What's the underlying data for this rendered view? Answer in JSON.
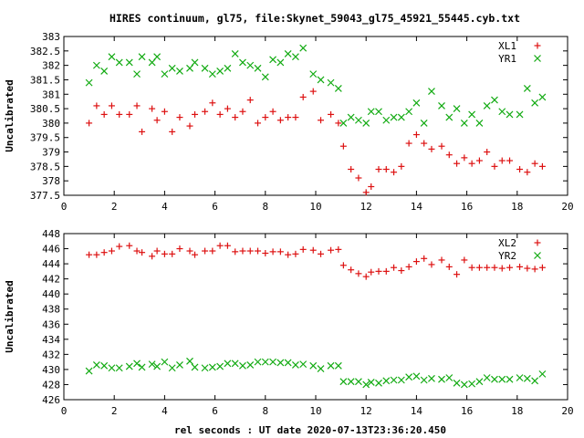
{
  "title": "HIRES continuum, gl75, file:Skynet_59043_gl75_45921_55445.cyb.txt",
  "xlabel": "rel seconds : UT date 2020-07-13T23:36:20.450",
  "colors": {
    "red": "#dd1111",
    "green": "#11aa11"
  },
  "chart_data": [
    {
      "type": "scatter",
      "ylabel": "Uncalibrated",
      "xlim": [
        0,
        20
      ],
      "ylim": [
        377.5,
        383
      ],
      "xticks": [
        0,
        2,
        4,
        6,
        8,
        10,
        12,
        14,
        16,
        18,
        20
      ],
      "yticks": [
        377.5,
        378,
        378.5,
        379,
        379.5,
        380,
        380.5,
        381,
        381.5,
        382,
        382.5,
        383
      ],
      "legend_position": "top-right",
      "series": [
        {
          "name": "XL1",
          "marker": "plus",
          "color": "#dd1111",
          "x": [
            1.0,
            1.3,
            1.6,
            1.9,
            2.2,
            2.6,
            2.9,
            3.1,
            3.5,
            3.7,
            4.0,
            4.3,
            4.6,
            5.0,
            5.2,
            5.6,
            5.9,
            6.2,
            6.5,
            6.8,
            7.1,
            7.4,
            7.7,
            8.0,
            8.3,
            8.6,
            8.9,
            9.2,
            9.5,
            9.9,
            10.2,
            10.6,
            10.9,
            11.1,
            11.4,
            11.7,
            12.0,
            12.2,
            12.5,
            12.8,
            13.1,
            13.4,
            13.7,
            14.0,
            14.3,
            14.6,
            15.0,
            15.3,
            15.6,
            15.9,
            16.2,
            16.5,
            16.8,
            17.1,
            17.4,
            17.7,
            18.1,
            18.4,
            18.7,
            19.0
          ],
          "y": [
            380.0,
            380.6,
            380.3,
            380.6,
            380.3,
            380.3,
            380.6,
            379.7,
            380.5,
            380.1,
            380.4,
            379.7,
            380.2,
            379.9,
            380.3,
            380.4,
            380.7,
            380.3,
            380.5,
            380.2,
            380.4,
            380.8,
            380.0,
            380.2,
            380.4,
            380.1,
            380.2,
            380.2,
            380.9,
            381.1,
            380.1,
            380.3,
            380.0,
            379.2,
            378.4,
            378.1,
            377.6,
            377.8,
            378.4,
            378.4,
            378.3,
            378.5,
            379.3,
            379.6,
            379.3,
            379.1,
            379.2,
            378.9,
            378.6,
            378.8,
            378.6,
            378.7,
            379.0,
            378.5,
            378.7,
            378.7,
            378.4,
            378.3,
            378.6,
            378.5
          ]
        },
        {
          "name": "YR1",
          "marker": "cross",
          "color": "#11aa11",
          "x": [
            1.0,
            1.3,
            1.6,
            1.9,
            2.2,
            2.6,
            2.9,
            3.1,
            3.5,
            3.7,
            4.0,
            4.3,
            4.6,
            5.0,
            5.2,
            5.6,
            5.9,
            6.2,
            6.5,
            6.8,
            7.1,
            7.4,
            7.7,
            8.0,
            8.3,
            8.6,
            8.9,
            9.2,
            9.5,
            9.9,
            10.2,
            10.6,
            10.9,
            11.1,
            11.4,
            11.7,
            12.0,
            12.2,
            12.5,
            12.8,
            13.1,
            13.4,
            13.7,
            14.0,
            14.3,
            14.6,
            15.0,
            15.3,
            15.6,
            15.9,
            16.2,
            16.5,
            16.8,
            17.1,
            17.4,
            17.7,
            18.1,
            18.4,
            18.7,
            19.0
          ],
          "y": [
            381.4,
            382.0,
            381.8,
            382.3,
            382.1,
            382.1,
            381.7,
            382.3,
            382.1,
            382.3,
            381.7,
            381.9,
            381.8,
            381.9,
            382.1,
            381.9,
            381.7,
            381.8,
            381.9,
            382.4,
            382.1,
            382.0,
            381.9,
            381.6,
            382.2,
            382.1,
            382.4,
            382.3,
            382.6,
            381.7,
            381.5,
            381.4,
            381.2,
            380.0,
            380.2,
            380.1,
            380.0,
            380.4,
            380.4,
            380.1,
            380.2,
            380.2,
            380.4,
            380.7,
            380.0,
            381.1,
            380.6,
            380.2,
            380.5,
            380.0,
            380.3,
            380.0,
            380.6,
            380.8,
            380.4,
            380.3,
            380.3,
            381.2,
            380.7,
            380.9
          ]
        }
      ]
    },
    {
      "type": "scatter",
      "ylabel": "Uncalibrated",
      "xlim": [
        0,
        20
      ],
      "ylim": [
        426,
        448
      ],
      "xticks": [
        0,
        2,
        4,
        6,
        8,
        10,
        12,
        14,
        16,
        18,
        20
      ],
      "yticks": [
        426,
        428,
        430,
        432,
        434,
        436,
        438,
        440,
        442,
        444,
        446,
        448
      ],
      "legend_position": "top-right",
      "series": [
        {
          "name": "XL2",
          "marker": "plus",
          "color": "#dd1111",
          "x": [
            1.0,
            1.3,
            1.6,
            1.9,
            2.2,
            2.6,
            2.9,
            3.1,
            3.5,
            3.7,
            4.0,
            4.3,
            4.6,
            5.0,
            5.2,
            5.6,
            5.9,
            6.2,
            6.5,
            6.8,
            7.1,
            7.4,
            7.7,
            8.0,
            8.3,
            8.6,
            8.9,
            9.2,
            9.5,
            9.9,
            10.2,
            10.6,
            10.9,
            11.1,
            11.4,
            11.7,
            12.0,
            12.2,
            12.5,
            12.8,
            13.1,
            13.4,
            13.7,
            14.0,
            14.3,
            14.6,
            15.0,
            15.3,
            15.6,
            15.9,
            16.2,
            16.5,
            16.8,
            17.1,
            17.4,
            17.7,
            18.1,
            18.4,
            18.7,
            19.0
          ],
          "y": [
            445.2,
            445.2,
            445.5,
            445.7,
            446.3,
            446.4,
            445.7,
            445.5,
            445.0,
            445.7,
            445.3,
            445.3,
            446.0,
            445.7,
            445.2,
            445.7,
            445.7,
            446.4,
            446.4,
            445.6,
            445.7,
            445.7,
            445.7,
            445.4,
            445.6,
            445.6,
            445.2,
            445.3,
            445.9,
            445.8,
            445.3,
            445.8,
            445.9,
            443.8,
            443.2,
            442.7,
            442.3,
            442.9,
            443.0,
            443.0,
            443.5,
            443.1,
            443.6,
            444.3,
            444.7,
            443.9,
            444.5,
            443.6,
            442.6,
            444.5,
            443.5,
            443.5,
            443.5,
            443.5,
            443.4,
            443.5,
            443.6,
            443.4,
            443.3,
            443.5
          ]
        },
        {
          "name": "YR2",
          "marker": "cross",
          "color": "#11aa11",
          "x": [
            1.0,
            1.3,
            1.6,
            1.9,
            2.2,
            2.6,
            2.9,
            3.1,
            3.5,
            3.7,
            4.0,
            4.3,
            4.6,
            5.0,
            5.2,
            5.6,
            5.9,
            6.2,
            6.5,
            6.8,
            7.1,
            7.4,
            7.7,
            8.0,
            8.3,
            8.6,
            8.9,
            9.2,
            9.5,
            9.9,
            10.2,
            10.6,
            10.9,
            11.1,
            11.4,
            11.7,
            12.0,
            12.2,
            12.5,
            12.8,
            13.1,
            13.4,
            13.7,
            14.0,
            14.3,
            14.6,
            15.0,
            15.3,
            15.6,
            15.9,
            16.2,
            16.5,
            16.8,
            17.1,
            17.4,
            17.7,
            18.1,
            18.4,
            18.7,
            19.0
          ],
          "y": [
            429.8,
            430.6,
            430.5,
            430.2,
            430.2,
            430.4,
            430.8,
            430.3,
            430.7,
            430.4,
            431.0,
            430.2,
            430.6,
            431.1,
            430.3,
            430.2,
            430.3,
            430.4,
            430.8,
            430.8,
            430.5,
            430.6,
            431.0,
            431.0,
            431.0,
            430.9,
            430.9,
            430.6,
            430.7,
            430.5,
            430.1,
            430.5,
            430.5,
            428.4,
            428.4,
            428.4,
            428.0,
            428.3,
            428.2,
            428.5,
            428.6,
            428.6,
            429.0,
            429.1,
            428.6,
            428.8,
            428.7,
            428.9,
            428.2,
            428.0,
            428.1,
            428.4,
            428.9,
            428.7,
            428.7,
            428.7,
            428.9,
            428.8,
            428.5,
            429.4
          ]
        }
      ]
    }
  ]
}
